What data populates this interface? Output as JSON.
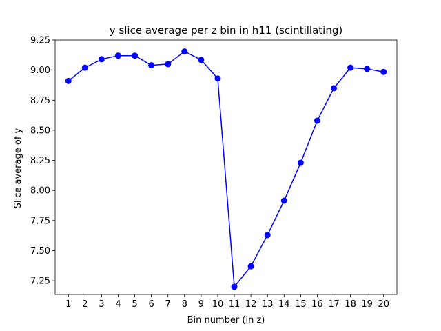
{
  "chart_data": {
    "type": "line",
    "title": "y slice average per z bin in h11 (scintillating)",
    "xlabel": "Bin number (in z)",
    "ylabel": "Slice average of y",
    "x": [
      1,
      2,
      3,
      4,
      5,
      6,
      7,
      8,
      9,
      10,
      11,
      12,
      13,
      14,
      15,
      16,
      17,
      18,
      19,
      20
    ],
    "series": [
      {
        "values": [
          8.91,
          9.02,
          9.09,
          9.12,
          9.12,
          9.04,
          9.05,
          9.155,
          9.085,
          8.93,
          7.2,
          7.37,
          7.63,
          7.915,
          8.23,
          8.58,
          8.85,
          9.02,
          9.01,
          8.985
        ],
        "color": "#0000ff",
        "marker": "circle"
      }
    ],
    "xlim": [
      0.2,
      20.8
    ],
    "ylim": [
      7.136,
      9.25
    ],
    "xticks": [
      "1",
      "2",
      "3",
      "4",
      "5",
      "6",
      "7",
      "8",
      "9",
      "10",
      "11",
      "12",
      "13",
      "14",
      "15",
      "16",
      "17",
      "18",
      "19",
      "20"
    ],
    "yticks": [
      "7.25",
      "7.50",
      "7.75",
      "8.00",
      "8.25",
      "8.50",
      "8.75",
      "9.00",
      "9.25"
    ],
    "grid": false,
    "legend": "none"
  }
}
